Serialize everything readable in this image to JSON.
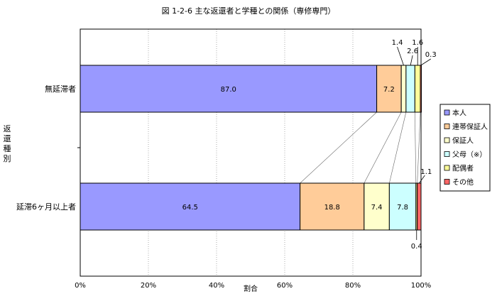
{
  "chart_data": {
    "type": "bar",
    "orientation": "horizontal",
    "stacked": true,
    "percent": true,
    "title": "図 1-2-6 主な返還者と学種との関係（専修専門）",
    "xlabel": "割合",
    "ylabel": "返還種別",
    "categories": [
      "無延滞者",
      "延滞6ヶ月以上者"
    ],
    "xlim": [
      0,
      100
    ],
    "xticks": [
      "0%",
      "20%",
      "40%",
      "60%",
      "80%",
      "100%"
    ],
    "grid": true,
    "legend_position": "right",
    "series": [
      {
        "name": "本人",
        "color": "#9999ff",
        "values": [
          87.0,
          64.5
        ],
        "labels": [
          "87.0",
          "64.5"
        ]
      },
      {
        "name": "連帯保証人",
        "color": "#ffcc99",
        "values": [
          7.2,
          18.8
        ],
        "labels": [
          "7.2",
          "18.8"
        ]
      },
      {
        "name": "保証人",
        "color": "#ffffcc",
        "values": [
          1.4,
          7.4
        ],
        "labels": [
          "1.4",
          "7.4"
        ]
      },
      {
        "name": "父母（※）",
        "color": "#ccffff",
        "values": [
          2.6,
          7.8
        ],
        "labels": [
          "2.6",
          "7.8"
        ]
      },
      {
        "name": "配偶者",
        "color": "#ffff99",
        "values": [
          1.6,
          0.4
        ],
        "labels": [
          "1.6",
          "0.4"
        ]
      },
      {
        "name": "その他",
        "color": "#ff6666",
        "values": [
          0.3,
          1.1
        ],
        "labels": [
          "0.3",
          "1.1"
        ]
      }
    ]
  }
}
